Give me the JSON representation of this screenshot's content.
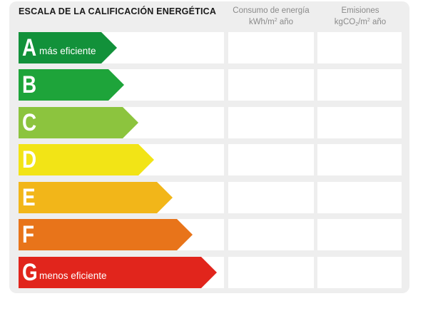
{
  "title": "ESCALA DE LA CALIFICACIÓN ENERGÉTICA",
  "columns": {
    "consumo": {
      "line1": "Consumo de energía",
      "line2_pre": "kWh/m",
      "line2_sup": "2",
      "line2_post": " año"
    },
    "emisiones": {
      "line1": "Emisiones",
      "line2_pre": "kgCO",
      "line2_sub": "2",
      "line2_mid": "/m",
      "line2_sup": "2",
      "line2_post": " año"
    }
  },
  "ratings": [
    {
      "letter": "A",
      "label": "más eficiente",
      "color": "#12913a"
    },
    {
      "letter": "B",
      "label": "",
      "color": "#1ea43a"
    },
    {
      "letter": "C",
      "label": "",
      "color": "#8cc43e"
    },
    {
      "letter": "D",
      "label": "",
      "color": "#f2e416"
    },
    {
      "letter": "E",
      "label": "",
      "color": "#f2b619"
    },
    {
      "letter": "F",
      "label": "",
      "color": "#e8741a"
    },
    {
      "letter": "G",
      "label": "menos eficiente",
      "color": "#e1251c"
    }
  ],
  "consumo_values": [
    "",
    "",
    "",
    "",
    "",
    "",
    ""
  ],
  "emisiones_values": [
    "",
    "",
    "",
    "",
    "",
    "",
    ""
  ]
}
